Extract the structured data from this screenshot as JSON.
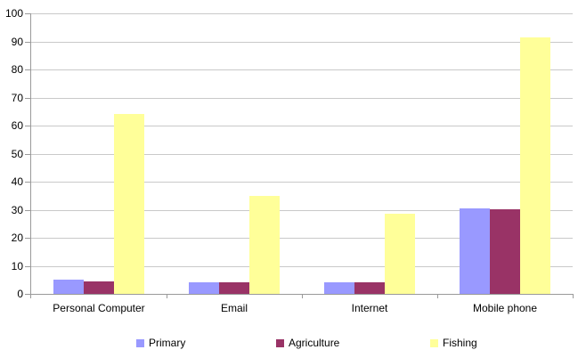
{
  "chart_data": {
    "type": "bar",
    "categories": [
      "Personal Computer",
      "Email",
      "Internet",
      "Mobile phone"
    ],
    "series": [
      {
        "name": "Primary",
        "color": "#9999FF",
        "values": [
          5,
          4,
          4,
          30.5
        ]
      },
      {
        "name": "Agriculture",
        "color": "#993366",
        "values": [
          4.5,
          4,
          4,
          30
        ]
      },
      {
        "name": "Fishing",
        "color": "#FFFF99",
        "values": [
          64,
          35,
          28.5,
          91.5
        ]
      }
    ],
    "title": "",
    "xlabel": "",
    "ylabel": "",
    "ylim": [
      0,
      100
    ],
    "ytick_step": 10,
    "ytick_labels": [
      "0",
      "10",
      "20",
      "30",
      "40",
      "50",
      "60",
      "70",
      "80",
      "90",
      "100"
    ],
    "grid": true,
    "legend_position": "bottom",
    "legend_entries": [
      "Primary",
      "Agriculture",
      "Fishing"
    ]
  },
  "colors": {
    "background": "#ffffff",
    "gridline": "#c9c9c9",
    "axis": "#9a9a9a",
    "text": "#000000"
  }
}
